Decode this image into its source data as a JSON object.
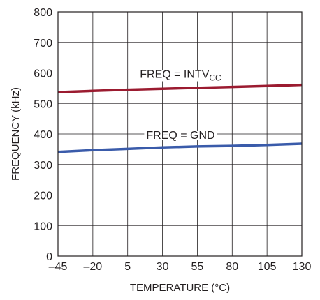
{
  "chart_data": {
    "type": "line",
    "title": "",
    "xlabel": "TEMPERATURE (°C)",
    "ylabel": "FREQUENCY (kHz)",
    "xlim": [
      -45,
      130
    ],
    "ylim": [
      0,
      800
    ],
    "x_ticks": [
      -45,
      -20,
      5,
      30,
      55,
      80,
      105,
      130
    ],
    "x_tick_labels": [
      "–45",
      "–20",
      "5",
      "30",
      "55",
      "80",
      "105",
      "130"
    ],
    "y_ticks": [
      0,
      100,
      200,
      300,
      400,
      500,
      600,
      700,
      800
    ],
    "y_tick_labels": [
      "0",
      "100",
      "200",
      "300",
      "400",
      "500",
      "600",
      "700",
      "800"
    ],
    "grid": true,
    "series": [
      {
        "color": "#9b1b30",
        "x": [
          -45,
          -20,
          5,
          30,
          55,
          80,
          105,
          130
        ],
        "y": [
          537,
          541,
          545,
          548,
          551,
          554,
          557,
          561
        ]
      },
      {
        "color": "#3a5baa",
        "x": [
          -45,
          -20,
          5,
          30,
          55,
          80,
          105,
          130
        ],
        "y": [
          341,
          347,
          351,
          356,
          359,
          361,
          364,
          368
        ]
      }
    ],
    "annotations": [
      {
        "main": "FREQ = INTV",
        "sub": "CC",
        "x": 43,
        "y": 600
      },
      {
        "main": "FREQ = GND",
        "sub": "",
        "x": 43,
        "y": 400
      }
    ]
  }
}
